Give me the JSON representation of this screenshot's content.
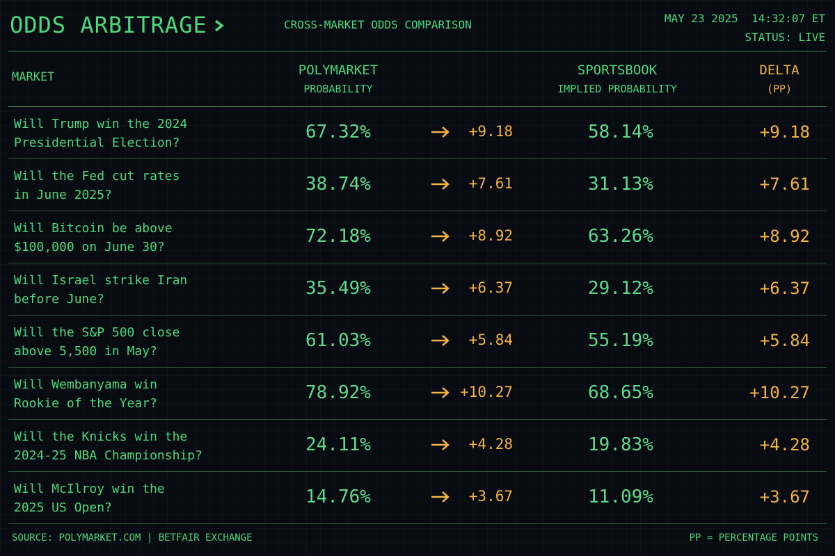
{
  "header": {
    "title": "ODDS ARBITRAGE",
    "subtitle": "CROSS-MARKET ODDS COMPARISON",
    "datetime": "MAY 23 2025  14:32:07 ET",
    "status": "STATUS: LIVE"
  },
  "table": {
    "columns": [
      {
        "title": "MARKET"
      },
      {
        "title": "POLYMARKET",
        "subtitle": "PROBABILITY"
      },
      {
        "title": "SPORTSBOOK",
        "subtitle": "IMPLIED PROBABILITY"
      },
      {
        "title": "DELTA",
        "subtitle": "(PP)"
      }
    ],
    "rows": [
      {
        "market": [
          "Will Trump win the 2024",
          "Presidential Election?"
        ],
        "polymarket": "67.32%",
        "sportsbook": "58.14%",
        "delta": "+9.18"
      },
      {
        "market": [
          "Will the Fed cut rates",
          "in June 2025?"
        ],
        "polymarket": "38.74%",
        "sportsbook": "31.13%",
        "delta": "+7.61"
      },
      {
        "market": [
          "Will Bitcoin be above",
          "$100,000 on June 30?"
        ],
        "polymarket": "72.18%",
        "sportsbook": "63.26%",
        "delta": "+8.92"
      },
      {
        "market": [
          "Will Israel strike Iran",
          "before June?"
        ],
        "polymarket": "35.49%",
        "sportsbook": "29.12%",
        "delta": "+6.37"
      },
      {
        "market": [
          "Will the S&P 500 close",
          "above 5,500 in May?"
        ],
        "polymarket": "61.03%",
        "sportsbook": "55.19%",
        "delta": "+5.84"
      },
      {
        "market": [
          "Will Wembanyama win",
          "Rookie of the Year?"
        ],
        "polymarket": "78.92%",
        "sportsbook": "68.65%",
        "delta": "+10.27"
      },
      {
        "market": [
          "Will the Knicks win the",
          "2024-25 NBA Championship?"
        ],
        "polymarket": "24.11%",
        "sportsbook": "19.83%",
        "delta": "+4.28"
      },
      {
        "market": [
          "Will McIlroy win the",
          "2025 US Open?"
        ],
        "polymarket": "14.76%",
        "sportsbook": "11.09%",
        "delta": "+3.67"
      }
    ]
  },
  "footer": {
    "source": "SOURCE: POLYMARKET.COM | BETFAIR EXCHANGE",
    "note": "PP = PERCENTAGE POINTS"
  }
}
